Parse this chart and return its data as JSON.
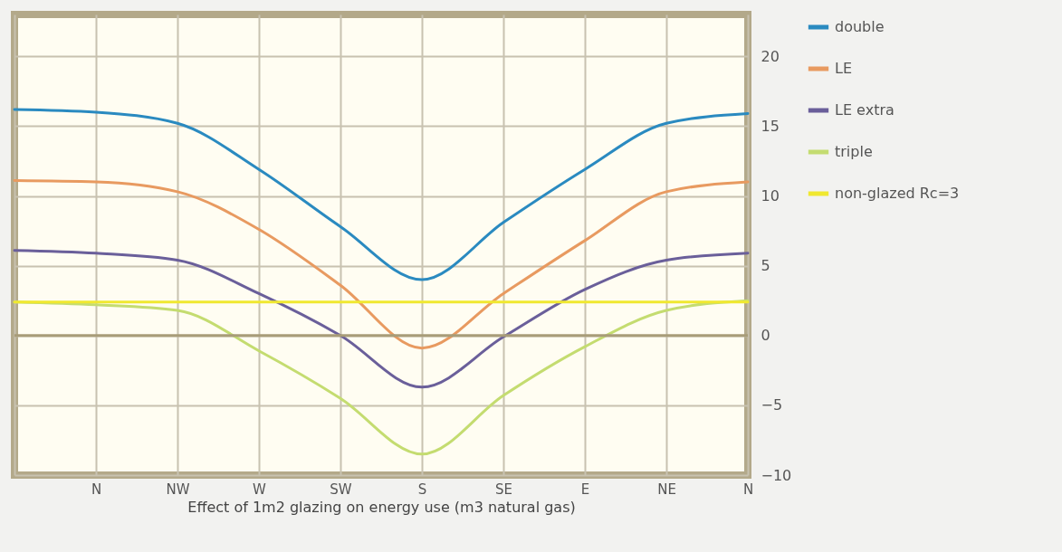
{
  "chart_data": {
    "type": "line",
    "xlabel": "Effect of 1m2 glazing on energy use (m3 natural gas)",
    "categories": [
      null,
      "N",
      "NW",
      "W",
      "SW",
      "S",
      "SE",
      "E",
      "NE",
      "N"
    ],
    "ylim": [
      -10,
      23
    ],
    "yticks": [
      20,
      15,
      10,
      5,
      0,
      -5,
      -10
    ],
    "series": [
      {
        "name": "double",
        "color": "#2a8ac0",
        "values": [
          16.2,
          16.0,
          15.2,
          11.9,
          7.8,
          4.0,
          8.1,
          11.9,
          15.2,
          15.9
        ]
      },
      {
        "name": "LE",
        "color": "#e89a60",
        "values": [
          11.1,
          11.0,
          10.3,
          7.6,
          3.6,
          -0.9,
          3.0,
          6.8,
          10.3,
          11.0
        ]
      },
      {
        "name": "LE extra",
        "color": "#6a5f9a",
        "values": [
          6.1,
          5.9,
          5.4,
          3.0,
          0.0,
          -3.7,
          -0.1,
          3.3,
          5.4,
          5.9
        ]
      },
      {
        "name": "triple",
        "color": "#c4dc70",
        "values": [
          2.4,
          2.2,
          1.8,
          -1.1,
          -4.5,
          -8.5,
          -4.3,
          -0.8,
          1.8,
          2.5
        ]
      },
      {
        "name": "non-glazed Rc=3",
        "color": "#f0e830",
        "values": [
          2.4,
          2.4,
          2.4,
          2.4,
          2.4,
          2.4,
          2.4,
          2.4,
          2.4,
          2.4
        ]
      }
    ],
    "ref_lines": [
      {
        "axis": "y",
        "value": 0,
        "color": "#a89c78"
      }
    ],
    "grid": true,
    "legend": "right",
    "marker": "none",
    "line_style": "solid"
  }
}
